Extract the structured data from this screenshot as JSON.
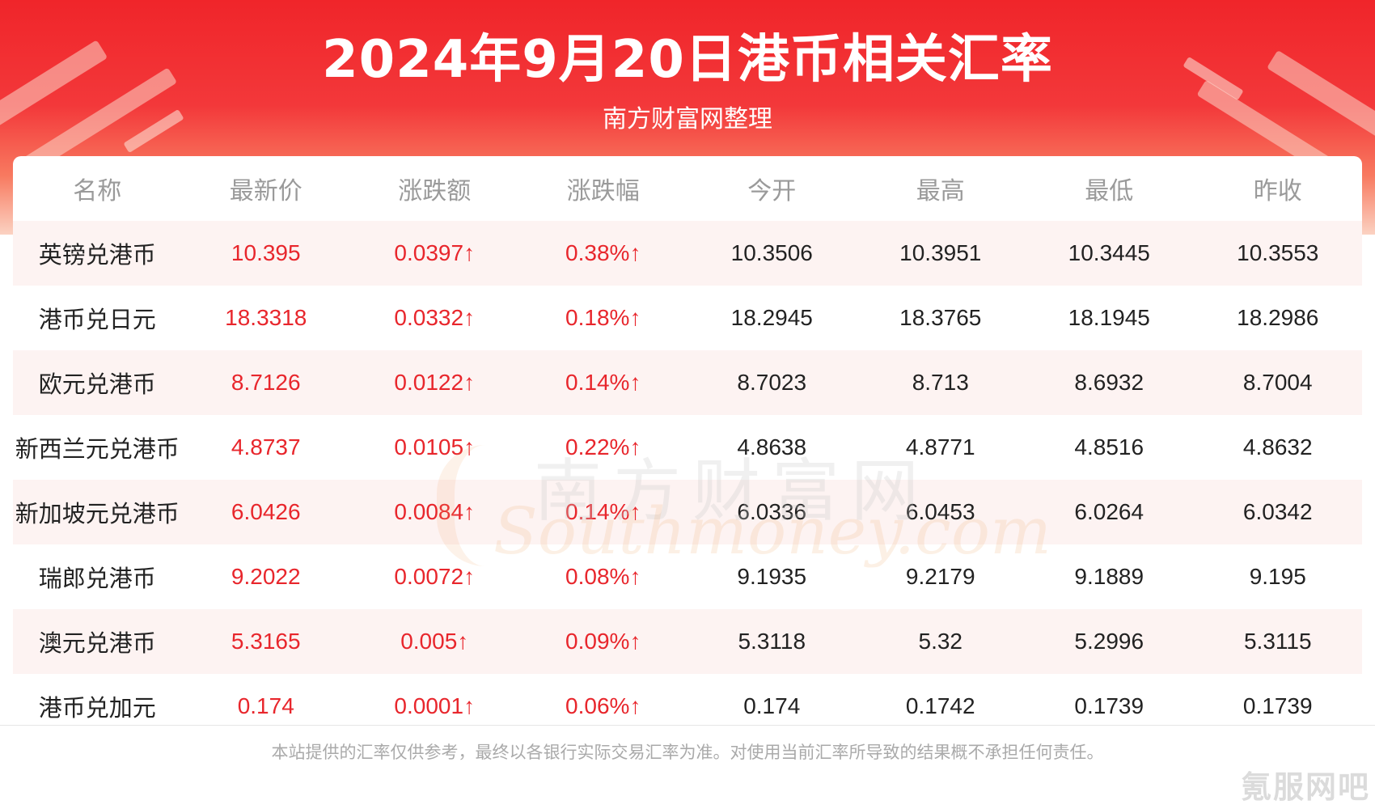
{
  "header": {
    "title": "2024年9月20日港币相关汇率",
    "subtitle": "南方财富网整理"
  },
  "table": {
    "columns": [
      "名称",
      "最新价",
      "涨跌额",
      "涨跌幅",
      "今开",
      "最高",
      "最低",
      "昨收"
    ],
    "rows": [
      [
        "英镑兑港币",
        "10.395",
        "0.0397↑",
        "0.38%↑",
        "10.3506",
        "10.3951",
        "10.3445",
        "10.3553"
      ],
      [
        "港币兑日元",
        "18.3318",
        "0.0332↑",
        "0.18%↑",
        "18.2945",
        "18.3765",
        "18.1945",
        "18.2986"
      ],
      [
        "欧元兑港币",
        "8.7126",
        "0.0122↑",
        "0.14%↑",
        "8.7023",
        "8.713",
        "8.6932",
        "8.7004"
      ],
      [
        "新西兰元兑港币",
        "4.8737",
        "0.0105↑",
        "0.22%↑",
        "4.8638",
        "4.8771",
        "4.8516",
        "4.8632"
      ],
      [
        "新加坡元兑港币",
        "6.0426",
        "0.0084↑",
        "0.14%↑",
        "6.0336",
        "6.0453",
        "6.0264",
        "6.0342"
      ],
      [
        "瑞郎兑港币",
        "9.2022",
        "0.0072↑",
        "0.08%↑",
        "9.1935",
        "9.2179",
        "9.1889",
        "9.195"
      ],
      [
        "澳元兑港币",
        "5.3165",
        "0.005↑",
        "0.09%↑",
        "5.3118",
        "5.32",
        "5.2996",
        "5.3115"
      ],
      [
        "港币兑加元",
        "0.174",
        "0.0001↑",
        "0.06%↑",
        "0.174",
        "0.1742",
        "0.1739",
        "0.1739"
      ]
    ]
  },
  "watermark": {
    "cn": "南方财富网",
    "en": "Southmoney.com"
  },
  "footer": {
    "disclaimer": "本站提供的汇率仅供参考，最终以各银行实际交易汇率为准。对使用当前汇率所导致的结果概不承担任何责任。",
    "corner_mark": "氪服网吧"
  },
  "colors": {
    "header_red": "#f0252a",
    "up_red": "#e8262c",
    "row_tint": "#fdf3f2",
    "header_text_gray": "#9a9a9a"
  }
}
